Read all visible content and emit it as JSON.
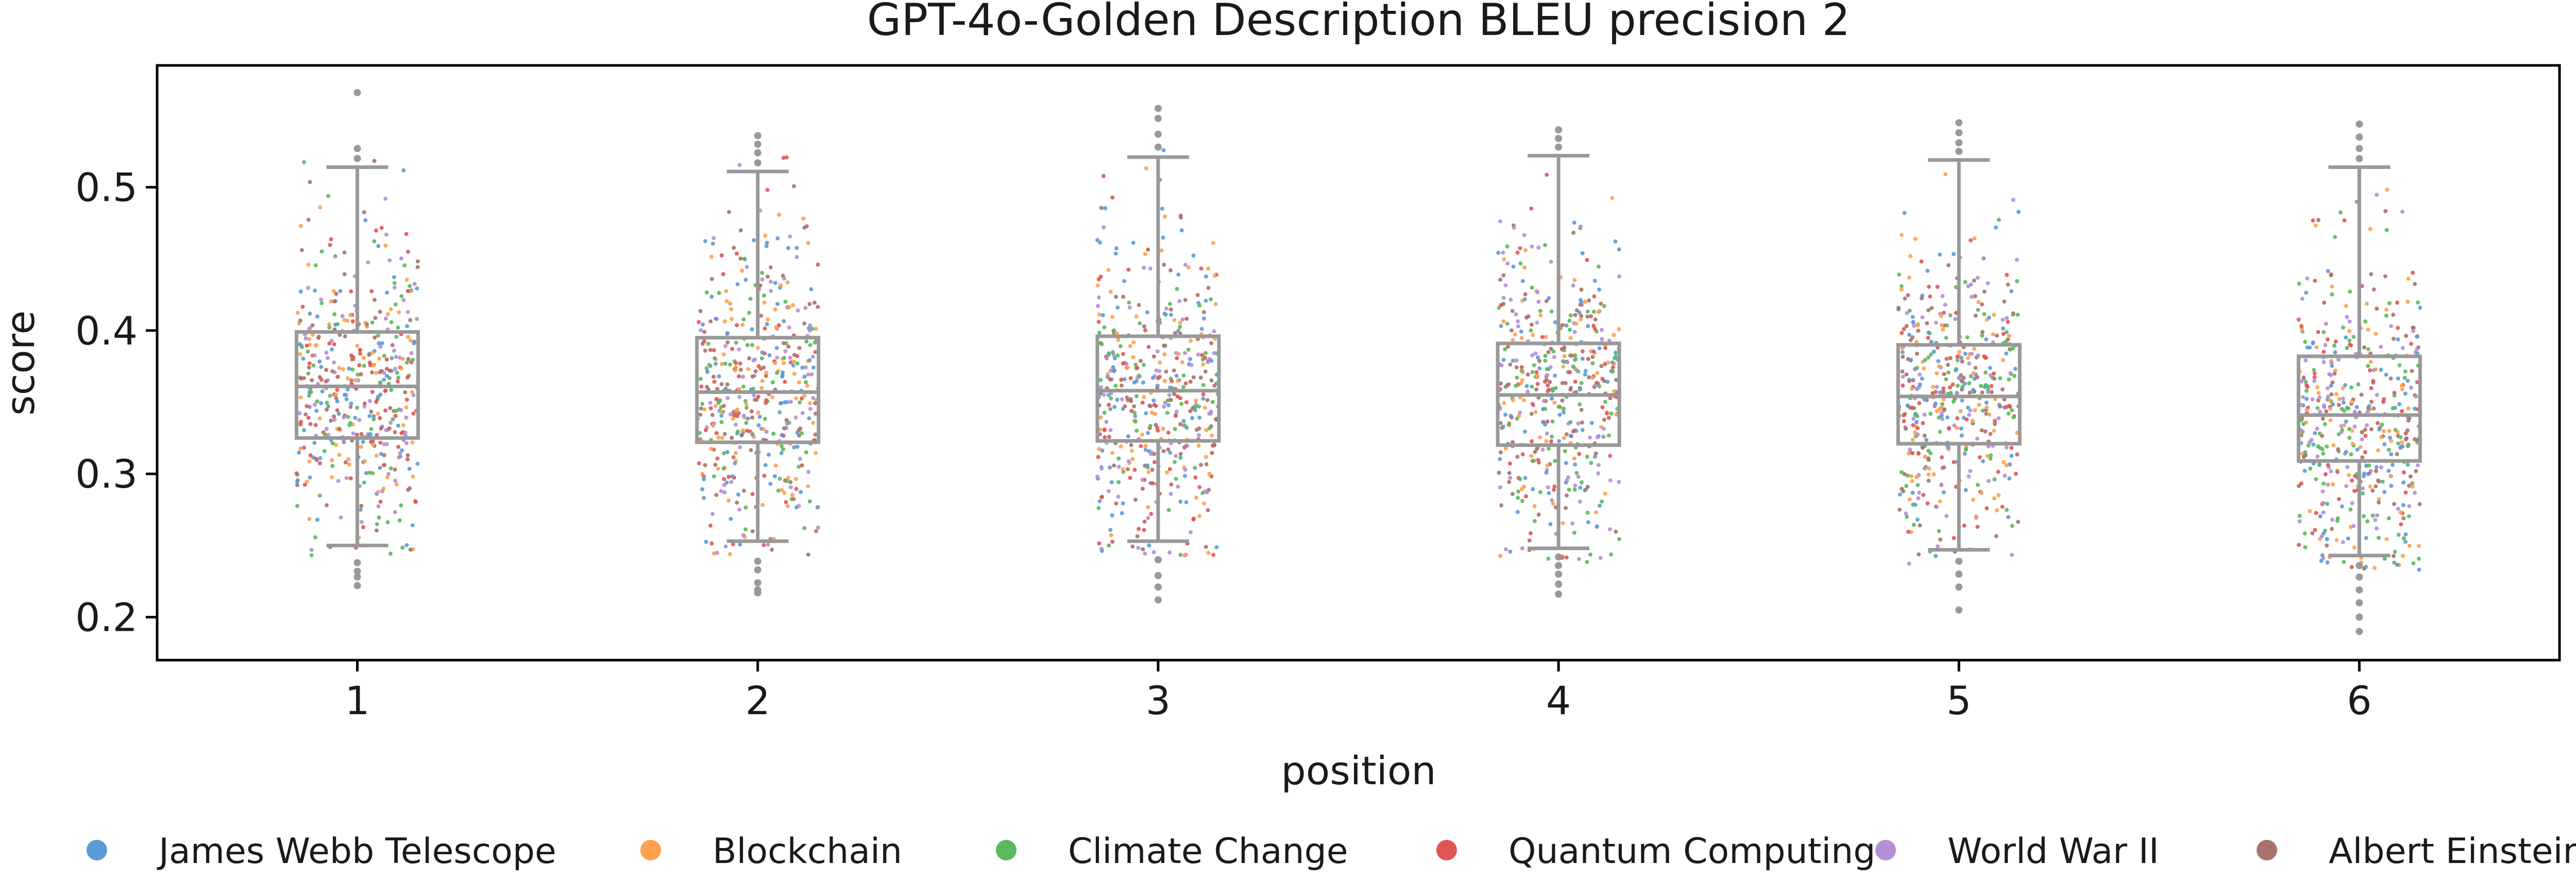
{
  "chart_data": {
    "type": "box",
    "title": "GPT-4o-Golden Description BLEU precision 2",
    "xlabel": "position",
    "ylabel": "score",
    "categories": [
      "1",
      "2",
      "3",
      "4",
      "5",
      "6"
    ],
    "ylim": [
      0.17,
      0.585
    ],
    "yticks": [
      0.2,
      0.3,
      0.4,
      0.5
    ],
    "ytick_labels": [
      "0.2",
      "0.3",
      "0.4",
      "0.5"
    ],
    "grid": false,
    "legend_position": "bottom",
    "box_color": "#999999",
    "boxes": [
      {
        "category": "1",
        "q1": 0.325,
        "median": 0.361,
        "q3": 0.399,
        "whisker_low": 0.25,
        "whisker_high": 0.514,
        "outliers": [
          0.238,
          0.232,
          0.228,
          0.222,
          0.52,
          0.527,
          0.566
        ]
      },
      {
        "category": "2",
        "q1": 0.322,
        "median": 0.357,
        "q3": 0.395,
        "whisker_low": 0.253,
        "whisker_high": 0.511,
        "outliers": [
          0.239,
          0.233,
          0.224,
          0.219,
          0.217,
          0.517,
          0.524,
          0.53,
          0.536
        ]
      },
      {
        "category": "3",
        "q1": 0.323,
        "median": 0.358,
        "q3": 0.396,
        "whisker_low": 0.253,
        "whisker_high": 0.521,
        "outliers": [
          0.24,
          0.229,
          0.221,
          0.212,
          0.528,
          0.537,
          0.548,
          0.555
        ]
      },
      {
        "category": "4",
        "q1": 0.32,
        "median": 0.355,
        "q3": 0.391,
        "whisker_low": 0.248,
        "whisker_high": 0.522,
        "outliers": [
          0.242,
          0.236,
          0.23,
          0.223,
          0.216,
          0.528,
          0.534,
          0.54
        ]
      },
      {
        "category": "5",
        "q1": 0.321,
        "median": 0.354,
        "q3": 0.39,
        "whisker_low": 0.247,
        "whisker_high": 0.519,
        "outliers": [
          0.239,
          0.23,
          0.221,
          0.205,
          0.525,
          0.531,
          0.538,
          0.545
        ]
      },
      {
        "category": "6",
        "q1": 0.309,
        "median": 0.341,
        "q3": 0.382,
        "whisker_low": 0.243,
        "whisker_high": 0.514,
        "outliers": [
          0.236,
          0.228,
          0.219,
          0.21,
          0.2,
          0.19,
          0.52,
          0.527,
          0.535,
          0.544
        ]
      }
    ],
    "series": [
      {
        "name": "James Webb Telescope",
        "color": "#5b9bd5"
      },
      {
        "name": "Blockchain",
        "color": "#ffa04c"
      },
      {
        "name": "Climate Change",
        "color": "#5cb85c"
      },
      {
        "name": "Quantum Computing",
        "color": "#e05555"
      },
      {
        "name": "World War II",
        "color": "#b38fd6"
      },
      {
        "name": "Albert Einstein",
        "color": "#a9726c"
      }
    ]
  }
}
